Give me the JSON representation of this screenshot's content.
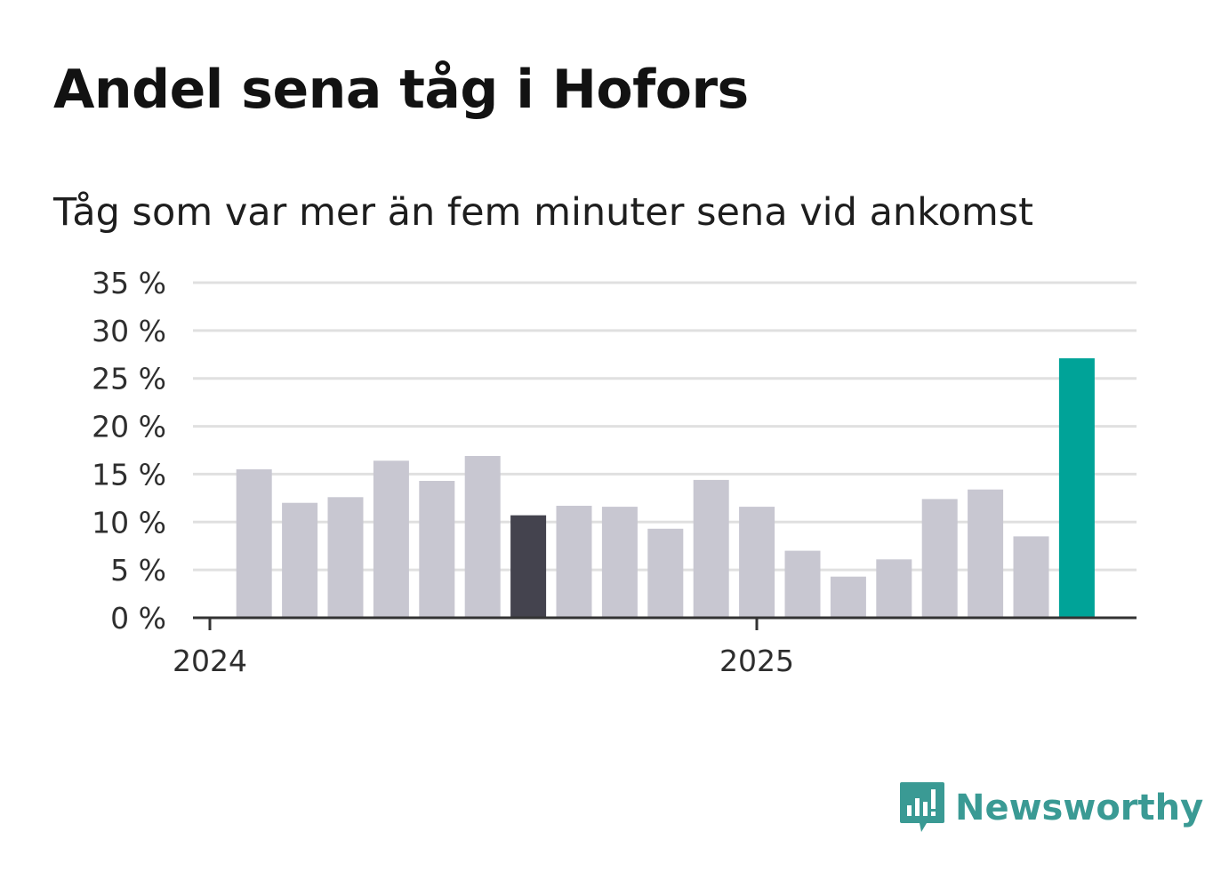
{
  "header": {
    "title": "Andel sena tåg i Hofors",
    "subtitle": "Tåg som var mer än fem minuter sena vid ankomst"
  },
  "brand": {
    "name": "Newsworthy",
    "logo_icon": "bar-chart-speech-bubble-icon",
    "color": "#3a9a94"
  },
  "chart_data": {
    "type": "bar",
    "title": "Andel sena tåg i Hofors",
    "subtitle": "Tåg som var mer än fem minuter sena vid ankomst",
    "xlabel": "",
    "ylabel": "",
    "ylim": [
      0,
      35
    ],
    "yticks": [
      0,
      5,
      10,
      15,
      20,
      25,
      30,
      35
    ],
    "ytick_labels": [
      "0 %",
      "5 %",
      "10 %",
      "15 %",
      "20 %",
      "25 %",
      "30 %",
      "35 %"
    ],
    "xtick_labels": [
      "2024",
      "2025"
    ],
    "grid": true,
    "values": [
      15.5,
      12.0,
      12.6,
      16.4,
      14.3,
      16.9,
      10.7,
      11.7,
      11.6,
      9.3,
      14.4,
      11.6,
      7.0,
      4.3,
      6.1,
      12.4,
      13.4,
      8.5,
      27.1
    ],
    "colors": {
      "default": "#c8c7d1",
      "highlight_dark": "#44434e",
      "highlight_latest": "#00a398",
      "grid": "#e0e0e0",
      "axis": "#333333"
    },
    "highlight_dark_index": 6,
    "highlight_latest_index": 18
  }
}
